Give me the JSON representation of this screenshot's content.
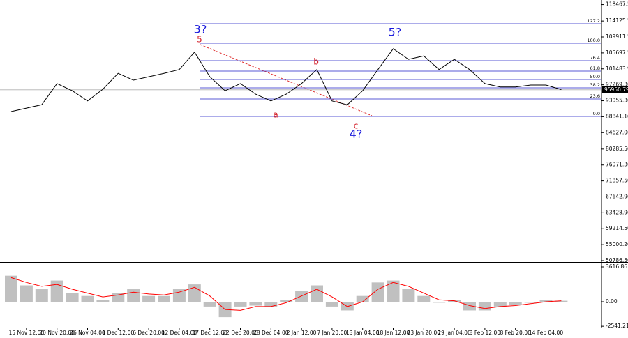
{
  "chart_data": [
    {
      "type": "line",
      "categories": [
        null,
        "15 Nov 12:00",
        null,
        "20 Nov 20:00",
        null,
        "26 Nov 04:00",
        null,
        "1 Dec 12:00",
        null,
        "6 Dec 20:00",
        null,
        "12 Dec 04:00",
        null,
        "17 Dec 12:00",
        null,
        "22 Dec 20:00",
        null,
        "28 Dec 04:00",
        null,
        "2 Jan 12:00",
        null,
        "7 Jan 20:00",
        null,
        "13 Jan 04:00",
        null,
        "18 Jan 12:00",
        null,
        "23 Jan 20:00",
        null,
        "29 Jan 04:00",
        null,
        "3 Feb 12:00",
        null,
        "8 Feb 20:00",
        null,
        "14 Feb 04:00",
        null
      ],
      "values": [
        90200,
        91100,
        92000,
        97600,
        95700,
        93000,
        96100,
        100300,
        98500,
        99400,
        100300,
        101300,
        105900,
        99400,
        95700,
        97600,
        94800,
        93000,
        94800,
        97600,
        101300,
        93000,
        92000,
        95700,
        101300,
        106800,
        104000,
        104900,
        101300,
        104000,
        101300,
        97600,
        96700,
        96700,
        97200,
        97200,
        96000
      ],
      "color": "#000000",
      "ylim": [
        50602,
        119677
      ],
      "yticks": [
        118467.56,
        114125.56,
        109911.56,
        105697.56,
        101483.96,
        97269.36,
        93055.36,
        88841.16,
        84627.06,
        80285.56,
        76071.36,
        71857.56,
        67642.96,
        63428.96,
        59214.56,
        55000.26,
        50786.56
      ],
      "last_price": 95950.79,
      "fib_color": "#2020c8",
      "fib_levels": [
        {
          "label": "127.2",
          "value": 113400
        },
        {
          "label": "100.0",
          "value": 108260
        },
        {
          "label": "76.4",
          "value": 103650
        },
        {
          "label": "61.8",
          "value": 100890
        },
        {
          "label": "50.0",
          "value": 98680
        },
        {
          "label": "38.2",
          "value": 96470
        },
        {
          "label": "23.6",
          "value": 93520
        },
        {
          "label": "0.0",
          "value": 88920
        }
      ],
      "annotations": [
        {
          "text": "3?",
          "color": "#1a1adc"
        },
        {
          "text": "5",
          "color": "#d4202a"
        },
        {
          "text": "b",
          "color": "#d4202a"
        },
        {
          "text": "a",
          "color": "#d4202a"
        },
        {
          "text": "c",
          "color": "#d4202a"
        },
        {
          "text": "4?",
          "color": "#1a1adc"
        },
        {
          "text": "5?",
          "color": "#1a1adc"
        }
      ]
    },
    {
      "type": "bar",
      "series": [
        {
          "type": "bar",
          "color": "#c0c0c0",
          "values": [
            2700,
            1700,
            1300,
            2200,
            900,
            600,
            200,
            900,
            1300,
            600,
            600,
            1300,
            1800,
            -500,
            -1600,
            -500,
            -400,
            -500,
            200,
            1100,
            1700,
            -500,
            -900,
            600,
            2000,
            2200,
            1300,
            600,
            -100,
            200,
            -900,
            -900,
            -500,
            -300,
            -100,
            200,
            100
          ]
        },
        {
          "type": "line",
          "color": "#ff0000",
          "values": [
            2500,
            2000,
            1600,
            1800,
            1300,
            900,
            500,
            700,
            1000,
            800,
            700,
            1000,
            1500,
            600,
            -800,
            -900,
            -500,
            -500,
            -100,
            600,
            1300,
            500,
            -500,
            0,
            1300,
            2000,
            1600,
            900,
            200,
            100,
            -400,
            -700,
            -500,
            -400,
            -200,
            0,
            100
          ]
        }
      ],
      "ylim": [
        -2676,
        3978
      ],
      "yticks": [
        3616.86,
        {
          "value": 0,
          "label": "0.00"
        },
        -2541.21
      ]
    }
  ]
}
